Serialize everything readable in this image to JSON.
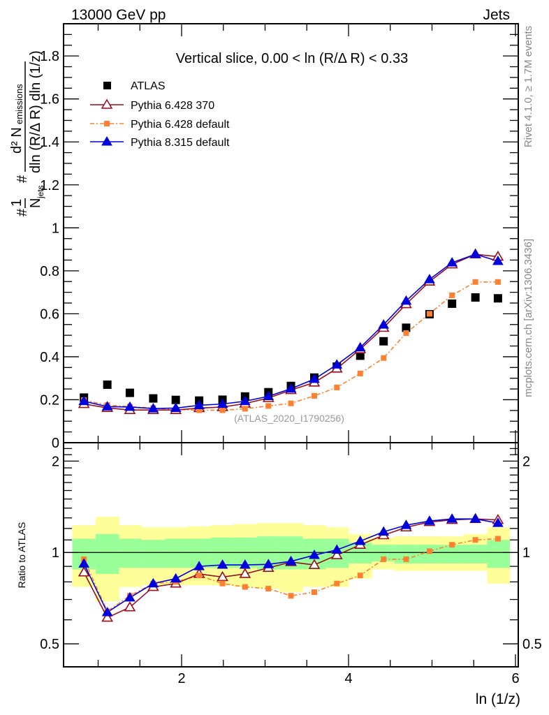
{
  "header": {
    "left": "13000 GeV pp",
    "right": "Jets"
  },
  "side_labels": {
    "rivet": "Rivet 4.1.0, ≥ 1.7M events",
    "mcplots": "mcplots.cern.ch [arXiv:1306.3436]"
  },
  "colors": {
    "atlas": "#000000",
    "p6_370": "#990e1e",
    "p6_default": "#ff8030",
    "p8_default": "#0000dd",
    "band_inner": "#99ff99",
    "band_outer": "#ffff99"
  },
  "chart_data": [
    {
      "type": "scatter",
      "panel": "main",
      "title": "Vertical slice, 0.00 < ln (R/Δ R) < 0.33",
      "reference": "(ATLAS_2020_I1790256)",
      "xlabel": "ln (1/z)",
      "ylabel_parts": {
        "prefix": "1/N_jets",
        "numerator": "d² N_emissions",
        "denominator": "dln (R/Δ R) dln (1/z)"
      },
      "xlim": [
        0.59,
        6.06
      ],
      "ylim": [
        0,
        1.95
      ],
      "xticks": [
        2,
        4,
        6
      ],
      "yticks": [
        0,
        0.2,
        0.4,
        0.6,
        0.8,
        1,
        1.2,
        1.4,
        1.6,
        1.8
      ],
      "ytick_labels": [
        "0",
        "0.2",
        "0.4",
        "0.6",
        "0.8",
        "1",
        "1.2",
        "1.4",
        "1.6",
        "1.8"
      ],
      "legend_position": "top-left",
      "x": [
        0.83,
        1.11,
        1.38,
        1.66,
        1.93,
        2.21,
        2.49,
        2.76,
        3.04,
        3.31,
        3.59,
        3.86,
        4.14,
        4.42,
        4.69,
        4.97,
        5.24,
        5.52,
        5.79
      ],
      "series": [
        {
          "name": "ATLAS",
          "key": "atlas",
          "marker": "square-filled",
          "line": "none",
          "values": [
            0.21,
            0.27,
            0.232,
            0.206,
            0.199,
            0.196,
            0.2,
            0.215,
            0.235,
            0.264,
            0.303,
            0.354,
            0.405,
            0.472,
            0.535,
            0.598,
            0.647,
            0.676,
            0.672
          ]
        },
        {
          "name": "Pythia 6.428 370",
          "key": "p6_370",
          "marker": "triangle-open",
          "line": "solid",
          "values": [
            0.18,
            0.162,
            0.152,
            0.152,
            0.152,
            0.161,
            0.166,
            0.182,
            0.208,
            0.245,
            0.28,
            0.345,
            0.435,
            0.535,
            0.645,
            0.75,
            0.83,
            0.877,
            0.866
          ]
        },
        {
          "name": "Pythia 6.428 default",
          "key": "p6_default",
          "marker": "square-small",
          "line": "dashdot",
          "values": [
            0.198,
            0.175,
            0.168,
            0.161,
            0.155,
            0.151,
            0.151,
            0.158,
            0.171,
            0.183,
            0.218,
            0.257,
            0.322,
            0.394,
            0.51,
            0.6,
            0.686,
            0.748,
            0.748
          ]
        },
        {
          "name": "Pythia 8.315 default",
          "key": "p8_default",
          "marker": "triangle-filled",
          "line": "solid",
          "values": [
            0.193,
            0.168,
            0.166,
            0.159,
            0.161,
            0.174,
            0.18,
            0.193,
            0.216,
            0.251,
            0.296,
            0.363,
            0.443,
            0.549,
            0.66,
            0.76,
            0.838,
            0.877,
            0.845
          ]
        }
      ]
    },
    {
      "type": "scatter",
      "panel": "ratio",
      "ylabel": "Ratio to ATLAS",
      "yscale": "log",
      "ylim": [
        0.42,
        2.3
      ],
      "yticks": [
        0.5,
        1,
        2
      ],
      "ytick_labels": [
        "0.5",
        "1",
        "2"
      ],
      "reference_line": 1,
      "bin_edges": [
        0.69,
        0.97,
        1.25,
        1.52,
        1.8,
        2.07,
        2.35,
        2.62,
        2.9,
        3.17,
        3.45,
        3.73,
        4.0,
        4.28,
        4.55,
        4.83,
        5.11,
        5.38,
        5.66,
        5.93
      ],
      "band_inner": {
        "low": [
          0.88,
          0.85,
          0.89,
          0.89,
          0.89,
          0.89,
          0.89,
          0.89,
          0.88,
          0.88,
          0.88,
          0.89,
          0.92,
          0.935,
          0.92,
          0.92,
          0.92,
          0.92,
          0.89
        ],
        "high": [
          1.11,
          1.15,
          1.11,
          1.1,
          1.11,
          1.11,
          1.12,
          1.12,
          1.13,
          1.13,
          1.11,
          1.11,
          1.08,
          1.06,
          1.06,
          1.06,
          1.06,
          1.06,
          1.1
        ]
      },
      "band_outer": {
        "low": [
          0.77,
          0.69,
          0.77,
          0.78,
          0.78,
          0.78,
          0.78,
          0.77,
          0.76,
          0.74,
          0.77,
          0.77,
          0.82,
          0.88,
          0.87,
          0.87,
          0.87,
          0.87,
          0.79
        ],
        "high": [
          1.23,
          1.31,
          1.23,
          1.21,
          1.21,
          1.22,
          1.23,
          1.24,
          1.25,
          1.25,
          1.23,
          1.21,
          1.15,
          1.12,
          1.13,
          1.13,
          1.13,
          1.15,
          1.21
        ]
      },
      "series": [
        {
          "name": "Pythia 6.428 370",
          "key": "p6_370",
          "values": [
            0.86,
            0.61,
            0.66,
            0.77,
            0.79,
            0.85,
            0.83,
            0.85,
            0.89,
            0.93,
            0.91,
            0.98,
            1.06,
            1.14,
            1.21,
            1.26,
            1.28,
            1.29,
            1.28
          ]
        },
        {
          "name": "Pythia 6.428 default",
          "key": "p6_default",
          "values": [
            0.95,
            0.64,
            0.72,
            0.79,
            0.8,
            0.84,
            0.79,
            0.77,
            0.76,
            0.72,
            0.74,
            0.79,
            0.84,
            0.95,
            0.95,
            1.01,
            1.06,
            1.1,
            1.11
          ]
        },
        {
          "name": "Pythia 8.315 default",
          "key": "p8_default",
          "values": [
            0.918,
            0.635,
            0.71,
            0.79,
            0.82,
            0.9,
            0.91,
            0.91,
            0.914,
            0.935,
            0.98,
            1.02,
            1.09,
            1.17,
            1.23,
            1.27,
            1.29,
            1.29,
            1.25
          ]
        }
      ]
    }
  ]
}
